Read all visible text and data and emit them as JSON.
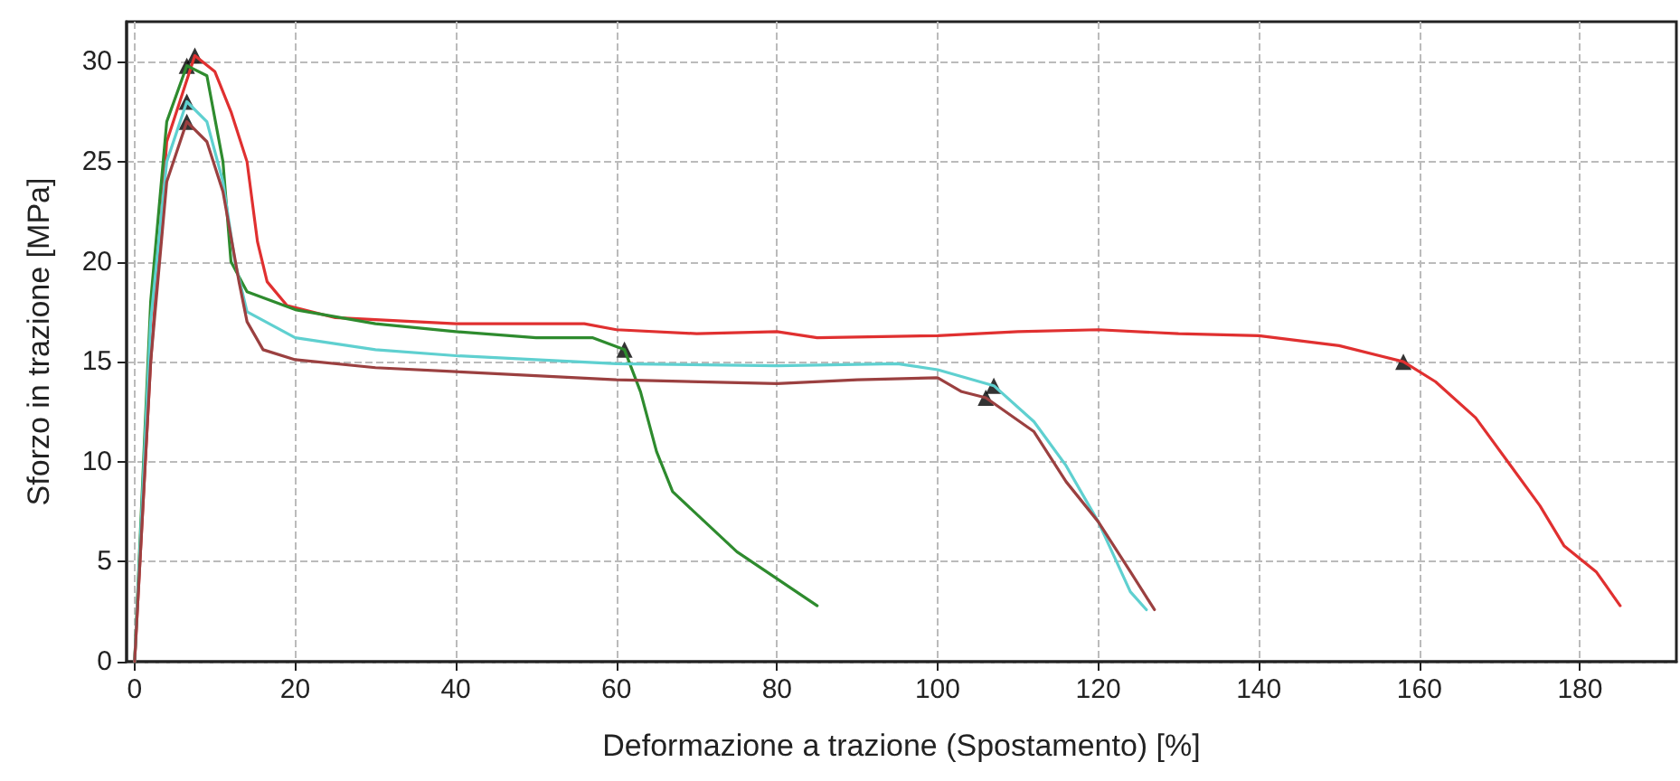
{
  "chart_data": {
    "type": "line",
    "xlabel": "Deformazione a trazione (Spostamento) [%]",
    "ylabel": "Sforzo in trazione [MPa]",
    "xlim": [
      -1,
      192
    ],
    "xticks": [
      0,
      20,
      40,
      60,
      80,
      100,
      120,
      140,
      160,
      180
    ],
    "ylim": [
      0,
      32
    ],
    "yticks": [
      0,
      5,
      10,
      15,
      20,
      25,
      30
    ],
    "grid": true,
    "marker": "none",
    "line_style": "solid",
    "series": [
      {
        "color": "#e03030",
        "x": [
          0,
          2,
          4,
          7.5,
          10,
          12,
          14,
          15.3,
          16.5,
          19,
          25,
          40,
          56,
          60,
          70,
          80,
          85,
          100,
          110,
          120,
          130,
          140,
          150,
          158,
          162,
          167,
          171,
          175,
          178,
          182,
          185
        ],
        "values": [
          0,
          15,
          26,
          30.3,
          29.5,
          27.5,
          25,
          21,
          19,
          17.8,
          17.2,
          16.9,
          16.9,
          16.6,
          16.4,
          16.5,
          16.2,
          16.3,
          16.5,
          16.6,
          16.4,
          16.3,
          15.8,
          15,
          14,
          12.2,
          10,
          7.8,
          5.8,
          4.5,
          2.8
        ]
      },
      {
        "color": "#2e8b2e",
        "x": [
          0,
          2,
          4,
          6.5,
          9,
          11,
          12,
          14,
          20,
          30,
          40,
          50,
          57,
          61,
          63,
          65,
          67,
          75,
          85
        ],
        "values": [
          0,
          18,
          27,
          29.8,
          29.3,
          25,
          20,
          18.5,
          17.6,
          16.9,
          16.5,
          16.2,
          16.2,
          15.6,
          13.5,
          10.5,
          8.5,
          5.5,
          2.8
        ]
      },
      {
        "color": "#5fd0d0",
        "x": [
          0,
          2,
          4,
          6.5,
          9,
          11,
          12.5,
          14,
          20,
          30,
          40,
          60,
          80,
          95,
          100,
          107,
          112,
          116,
          120,
          124,
          126
        ],
        "values": [
          0,
          17,
          25,
          28,
          27,
          24,
          20,
          17.5,
          16.2,
          15.6,
          15.3,
          14.9,
          14.8,
          14.9,
          14.6,
          13.8,
          12,
          9.8,
          7,
          3.5,
          2.6
        ]
      },
      {
        "color": "#9b4040",
        "x": [
          0,
          2,
          4,
          6.5,
          9,
          11,
          13,
          14,
          16,
          20,
          30,
          40,
          60,
          80,
          90,
          100,
          103,
          106,
          112,
          116,
          120,
          124,
          127
        ],
        "values": [
          0,
          15,
          24,
          27,
          26,
          23.5,
          19,
          17,
          15.6,
          15.1,
          14.7,
          14.5,
          14.1,
          13.9,
          14.1,
          14.2,
          13.5,
          13.2,
          11.5,
          9,
          7,
          4.5,
          2.6
        ]
      },
      {
        "type": "scatter",
        "marker": "triangle",
        "color": "#000000",
        "x": [
          7.5,
          6.5,
          6.5,
          6.5,
          158,
          61,
          107,
          106
        ],
        "values": [
          30.3,
          29.8,
          28,
          27,
          15,
          15.6,
          13.8,
          13.2
        ]
      }
    ]
  }
}
